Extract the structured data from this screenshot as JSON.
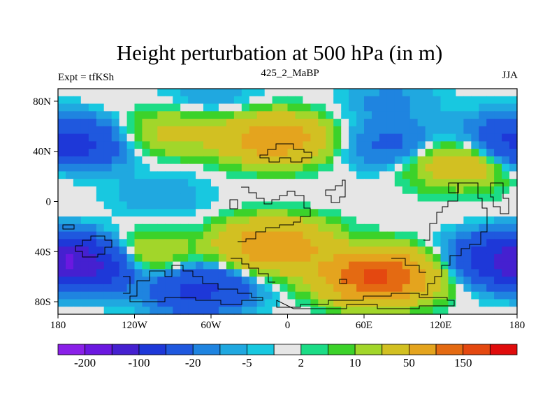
{
  "chart_data": {
    "type": "heatmap",
    "title": "Height perturbation at 500 hPa (in m)",
    "subtitle_left": "Expt = tfKSh",
    "subtitle_center": "425_2_MaBP",
    "subtitle_right": "JJA",
    "xlim": [
      -180,
      180
    ],
    "ylim": [
      -90,
      90
    ],
    "x_ticks": [
      {
        "value": -180,
        "label": "180"
      },
      {
        "value": -120,
        "label": "120W"
      },
      {
        "value": -60,
        "label": "60W"
      },
      {
        "value": 0,
        "label": "0"
      },
      {
        "value": 60,
        "label": "60E"
      },
      {
        "value": 120,
        "label": "120E"
      },
      {
        "value": 180,
        "label": "180"
      }
    ],
    "y_ticks": [
      {
        "value": 80,
        "label": "80N"
      },
      {
        "value": 40,
        "label": "40N"
      },
      {
        "value": 0,
        "label": "0"
      },
      {
        "value": -40,
        "label": "40S"
      },
      {
        "value": -80,
        "label": "80S"
      }
    ],
    "colorbar": {
      "levels": [
        -200,
        -150,
        -100,
        -50,
        -20,
        -10,
        -5,
        -2,
        2,
        5,
        10,
        20,
        50,
        100,
        150,
        200
      ],
      "colors": [
        "#8a20e8",
        "#6b18e0",
        "#4520d0",
        "#1e38d8",
        "#1f58de",
        "#1f84e0",
        "#20a8e0",
        "#18c8e0",
        "#e6e6e6",
        "#1cdc86",
        "#3cd22a",
        "#a2d62a",
        "#d2c022",
        "#e4a41e",
        "#e46a12",
        "#e44810",
        "#e00c0c"
      ],
      "labels": [
        {
          "value": -200,
          "label": "-200"
        },
        {
          "value": -100,
          "label": "-100"
        },
        {
          "value": -20,
          "label": "-20"
        },
        {
          "value": -5,
          "label": "-5"
        },
        {
          "value": 2,
          "label": "2"
        },
        {
          "value": 10,
          "label": "10"
        },
        {
          "value": 50,
          "label": "50"
        },
        {
          "value": 150,
          "label": "150"
        }
      ]
    },
    "field_features": [
      {
        "name": "north-pacific-low",
        "lon": -170,
        "lat": 45,
        "value": -60
      },
      {
        "name": "arctic-low-west",
        "lon": -60,
        "lat": 82,
        "value": -10
      },
      {
        "name": "arctic-low-east",
        "lon": 80,
        "lat": 80,
        "value": -12
      },
      {
        "name": "north-atlantic-high",
        "lon": -10,
        "lat": 50,
        "value": 80
      },
      {
        "name": "north-america-high",
        "lon": -90,
        "lat": 55,
        "value": 25
      },
      {
        "name": "north-asia-low",
        "lon": 80,
        "lat": 45,
        "value": -25
      },
      {
        "name": "east-asia-low",
        "lon": 170,
        "lat": 55,
        "value": -15
      },
      {
        "name": "east-asia-high",
        "lon": 135,
        "lat": 30,
        "value": 40
      },
      {
        "name": "tropical-pacific-low",
        "lon": -100,
        "lat": 5,
        "value": -10
      },
      {
        "name": "south-atlantic-high",
        "lon": -10,
        "lat": -35,
        "value": 90
      },
      {
        "name": "southern-ocean-high",
        "lon": 70,
        "lat": -60,
        "value": 160
      },
      {
        "name": "south-pacific-low",
        "lon": -70,
        "lat": -70,
        "value": -60
      },
      {
        "name": "south-pacific-high",
        "lon": -120,
        "lat": -45,
        "value": 40
      },
      {
        "name": "south-dateline-low",
        "lon": -160,
        "lat": -50,
        "value": -120
      },
      {
        "name": "south-east-low",
        "lon": 170,
        "lat": -45,
        "value": -70
      }
    ]
  }
}
